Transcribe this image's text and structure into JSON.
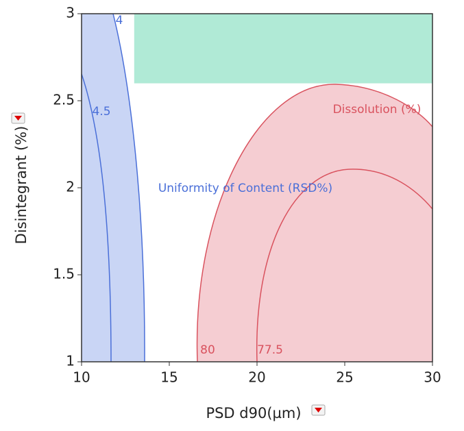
{
  "chart_data": {
    "type": "contour",
    "xlabel": "PSD d90(µm)",
    "ylabel": "Disintegrant (%)",
    "xlim": [
      10,
      30
    ],
    "ylim": [
      1,
      3
    ],
    "xticks": [
      10,
      15,
      20,
      25,
      30
    ],
    "yticks": [
      1,
      1.5,
      2,
      2.5,
      3
    ],
    "series": [
      {
        "name": "Uniformity of Content (RSD%)",
        "color": "#4a6fd8",
        "fill": "#c9d5f5",
        "levels": [
          4,
          4.5
        ]
      },
      {
        "name": "Dissolution (%)",
        "color": "#d9525e",
        "fill": "#f5cdd2",
        "levels": [
          80,
          77.5
        ]
      }
    ],
    "sweet_spot": {
      "color": "#b0ead6",
      "xlim": [
        13,
        30
      ],
      "ylim": [
        2.6,
        3
      ]
    }
  }
}
